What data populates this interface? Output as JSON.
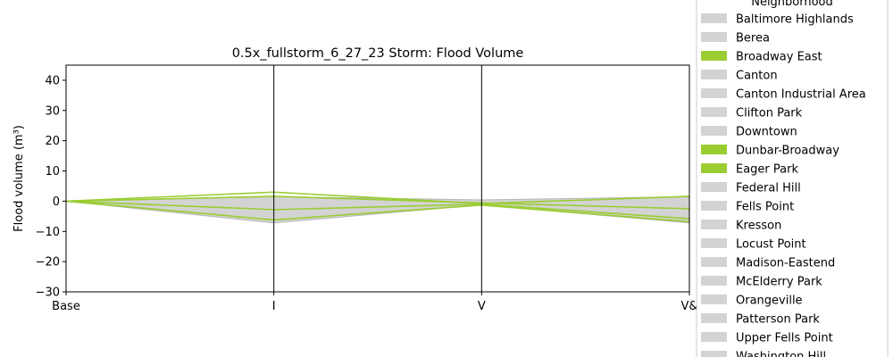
{
  "chart_data": {
    "type": "area",
    "title": "0.5x_fullstorm_6_27_23 Storm: Flood Volume",
    "xlabel": "",
    "ylabel": "Flood volume (m³)",
    "categories": [
      "Base",
      "I",
      "V",
      "V&"
    ],
    "ylim": [
      -30,
      45
    ],
    "yticks": [
      -30,
      -20,
      -10,
      0,
      10,
      20,
      30,
      40
    ],
    "ytick_labels": [
      "−30",
      "−20",
      "−10",
      "0",
      "10",
      "20",
      "30",
      "40"
    ],
    "vertical_lines_at": [
      "I",
      "V"
    ],
    "band": {
      "upper": [
        0,
        1.5,
        0.4,
        1.5
      ],
      "lower": [
        0,
        -7.2,
        -1.2,
        -7.2
      ],
      "color": "#d3d3d3"
    },
    "series": [
      {
        "values": [
          0,
          3.0,
          -0.8,
          1.6
        ]
      },
      {
        "values": [
          0,
          1.6,
          -0.6,
          -2.5
        ]
      },
      {
        "values": [
          0,
          -2.8,
          -1.0,
          -5.8
        ]
      },
      {
        "values": [
          0,
          -6.2,
          -1.3,
          -6.8
        ]
      }
    ],
    "series_color": "#9acd32",
    "legend": {
      "title": "Neighborhood",
      "placement": "right",
      "entries": [
        {
          "label": "Baltimore Highlands",
          "color": "#d3d3d3"
        },
        {
          "label": "Berea",
          "color": "#d3d3d3"
        },
        {
          "label": "Broadway East",
          "color": "#9acd32"
        },
        {
          "label": "Canton",
          "color": "#d3d3d3"
        },
        {
          "label": "Canton Industrial Area",
          "color": "#d3d3d3"
        },
        {
          "label": "Clifton Park",
          "color": "#d3d3d3"
        },
        {
          "label": "Downtown",
          "color": "#d3d3d3"
        },
        {
          "label": "Dunbar-Broadway",
          "color": "#9acd32"
        },
        {
          "label": "Eager Park",
          "color": "#9acd32"
        },
        {
          "label": "Federal Hill",
          "color": "#d3d3d3"
        },
        {
          "label": "Fells Point",
          "color": "#d3d3d3"
        },
        {
          "label": "Kresson",
          "color": "#d3d3d3"
        },
        {
          "label": "Locust Point",
          "color": "#d3d3d3"
        },
        {
          "label": "Madison-Eastend",
          "color": "#d3d3d3"
        },
        {
          "label": "McElderry Park",
          "color": "#d3d3d3"
        },
        {
          "label": "Orangeville",
          "color": "#d3d3d3"
        },
        {
          "label": "Patterson Park",
          "color": "#d3d3d3"
        },
        {
          "label": "Upper Fells Point",
          "color": "#d3d3d3"
        },
        {
          "label": "Washington Hill",
          "color": "#d3d3d3"
        }
      ]
    }
  }
}
